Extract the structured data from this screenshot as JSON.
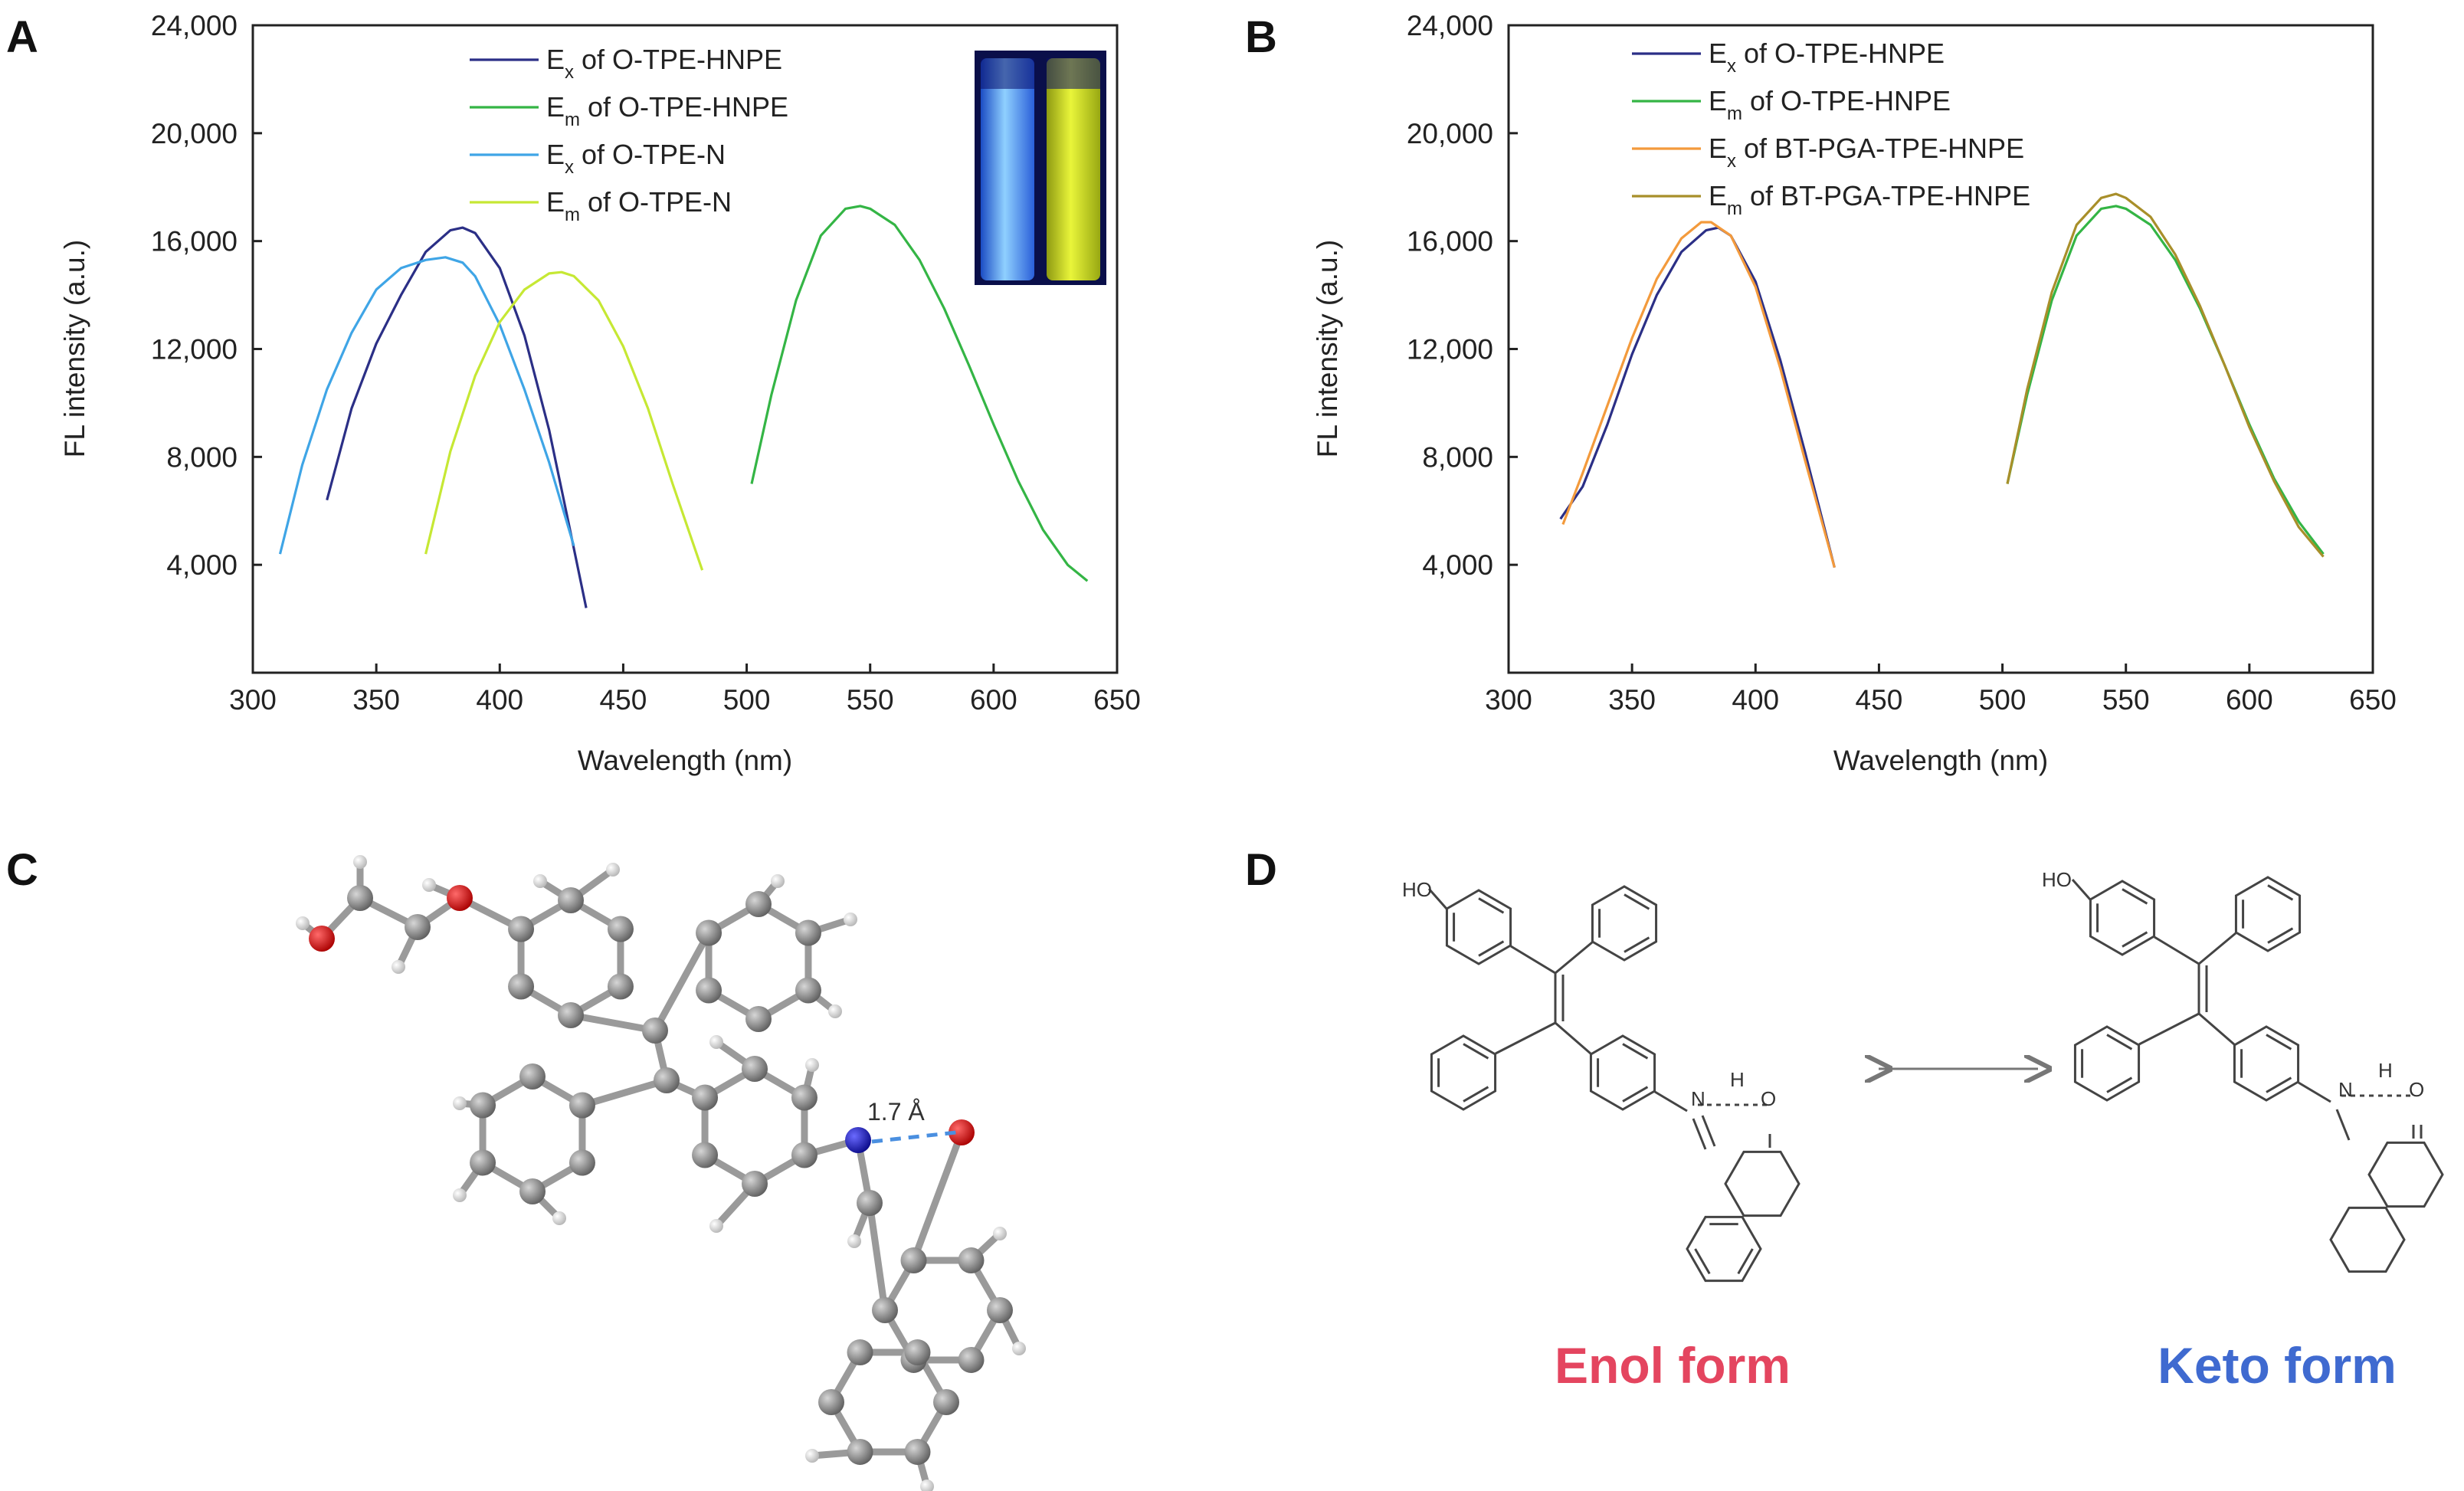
{
  "panels": {
    "a": "A",
    "b": "B",
    "c": "C",
    "d": "D"
  },
  "chart_data": [
    {
      "type": "line",
      "panel": "A",
      "xlabel": "Wavelength (nm)",
      "ylabel": "FL intensity (a.u.)",
      "xlim": [
        300,
        650
      ],
      "ylim": [
        0,
        24000
      ],
      "xticks": [
        300,
        350,
        400,
        450,
        500,
        550,
        600,
        650
      ],
      "xtick_labels": [
        "300",
        "350",
        "400",
        "450",
        "500",
        "550",
        "600",
        "650"
      ],
      "yticks": [
        4000,
        8000,
        12000,
        16000,
        20000,
        24000
      ],
      "ytick_labels": [
        "4,000",
        "8,000",
        "12,000",
        "16,000",
        "20,000",
        "24,000"
      ],
      "legend_position": "top-left",
      "inset": "photo of two cuvettes: blue and yellow fluorescence",
      "series": [
        {
          "base": "E",
          "sub": "x",
          "rest": " of O-TPE-HNPE",
          "color": "#2b2f86",
          "x": [
            330,
            340,
            350,
            360,
            370,
            380,
            385,
            390,
            400,
            410,
            420,
            428,
            435
          ],
          "y": [
            6400,
            9800,
            12200,
            14000,
            15600,
            16400,
            16500,
            16300,
            15000,
            12500,
            9000,
            5500,
            2400
          ]
        },
        {
          "base": "E",
          "sub": "m",
          "rest": " of O-TPE-HNPE",
          "color": "#34b545",
          "x": [
            502,
            510,
            520,
            530,
            540,
            546,
            550,
            560,
            570,
            580,
            590,
            600,
            610,
            620,
            630,
            638
          ],
          "y": [
            7000,
            10300,
            13800,
            16200,
            17200,
            17300,
            17200,
            16600,
            15300,
            13500,
            11400,
            9200,
            7100,
            5300,
            4000,
            3400
          ]
        },
        {
          "base": "E",
          "sub": "x",
          "rest": " of O-TPE-N",
          "color": "#3fa5e6",
          "x": [
            311,
            320,
            330,
            340,
            350,
            360,
            370,
            378,
            385,
            390,
            400,
            410,
            420,
            430
          ],
          "y": [
            4400,
            7700,
            10500,
            12600,
            14200,
            15000,
            15300,
            15400,
            15200,
            14700,
            12900,
            10500,
            7800,
            4700
          ]
        },
        {
          "base": "E",
          "sub": "m",
          "rest": " of O-TPE-N",
          "color": "#c6e834",
          "x": [
            370,
            380,
            390,
            400,
            410,
            420,
            425,
            430,
            440,
            450,
            460,
            470,
            482
          ],
          "y": [
            4400,
            8200,
            11000,
            13000,
            14200,
            14800,
            14850,
            14700,
            13800,
            12100,
            9800,
            7000,
            3800
          ]
        }
      ]
    },
    {
      "type": "line",
      "panel": "B",
      "xlabel": "Wavelength (nm)",
      "ylabel": "FL intensity (a.u.)",
      "xlim": [
        300,
        650
      ],
      "ylim": [
        0,
        24000
      ],
      "xticks": [
        300,
        350,
        400,
        450,
        500,
        550,
        600,
        650
      ],
      "xtick_labels": [
        "300",
        "350",
        "400",
        "450",
        "500",
        "550",
        "600",
        "650"
      ],
      "yticks": [
        4000,
        8000,
        12000,
        16000,
        20000,
        24000
      ],
      "ytick_labels": [
        "4,000",
        "8,000",
        "12,000",
        "16,000",
        "20,000",
        "24,000"
      ],
      "legend_position": "top-left",
      "series": [
        {
          "base": "E",
          "sub": "x",
          "rest": " of O-TPE-HNPE",
          "color": "#2b2f86",
          "x": [
            321,
            330,
            340,
            350,
            360,
            370,
            380,
            385,
            390,
            400,
            410,
            420,
            432
          ],
          "y": [
            5700,
            6900,
            9200,
            11800,
            14000,
            15600,
            16400,
            16500,
            16200,
            14500,
            11600,
            8200,
            3900
          ]
        },
        {
          "base": "E",
          "sub": "m",
          "rest": " of O-TPE-HNPE",
          "color": "#34b545",
          "x": [
            502,
            510,
            520,
            530,
            540,
            546,
            550,
            560,
            570,
            580,
            590,
            600,
            610,
            620,
            630
          ],
          "y": [
            7000,
            10300,
            13800,
            16200,
            17200,
            17300,
            17200,
            16600,
            15300,
            13500,
            11400,
            9200,
            7200,
            5600,
            4400
          ]
        },
        {
          "base": "E",
          "sub": "x",
          "rest": " of BT-PGA-TPE-HNPE",
          "color": "#f39a3c",
          "x": [
            322,
            330,
            340,
            350,
            360,
            370,
            378,
            382,
            390,
            400,
            410,
            420,
            432
          ],
          "y": [
            5500,
            7400,
            9900,
            12400,
            14600,
            16100,
            16700,
            16700,
            16200,
            14300,
            11300,
            7900,
            3900
          ]
        },
        {
          "base": "E",
          "sub": "m",
          "rest": " of BT-PGA-TPE-HNPE",
          "color": "#a88f2a",
          "x": [
            502,
            510,
            520,
            530,
            540,
            546,
            550,
            560,
            570,
            580,
            590,
            600,
            610,
            620,
            630
          ],
          "y": [
            7000,
            10500,
            14100,
            16600,
            17600,
            17750,
            17600,
            16900,
            15500,
            13600,
            11400,
            9100,
            7100,
            5400,
            4300
          ]
        }
      ]
    }
  ],
  "molecule_c": {
    "distance_label": "1.7 Å"
  },
  "scheme_d": {
    "ho_label": "HO",
    "n_label": "N",
    "h_label": "H",
    "o_label": "O",
    "enol_caption": "Enol form",
    "keto_caption": "Keto form"
  }
}
